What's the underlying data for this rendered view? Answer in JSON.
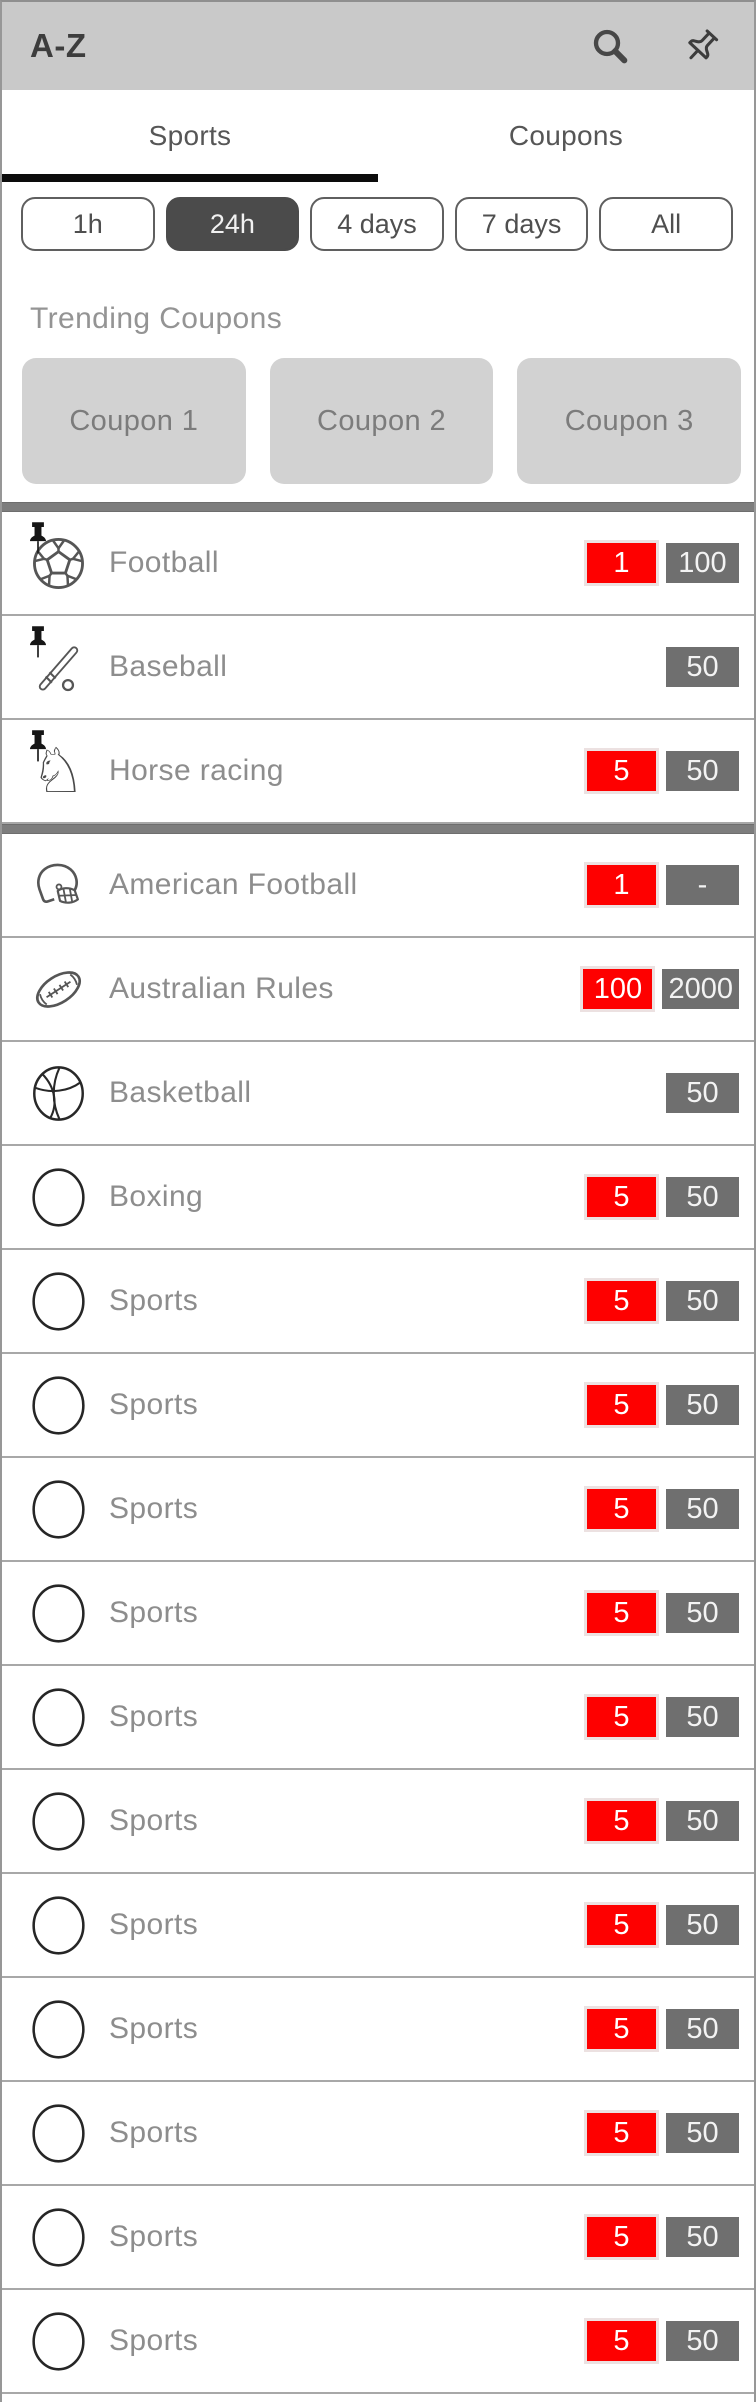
{
  "header": {
    "title": "A-Z",
    "search_icon": "search-icon",
    "pin_icon": "pushpin-icon"
  },
  "tabs": [
    {
      "label": "Sports",
      "active": true
    },
    {
      "label": "Coupons",
      "active": false
    }
  ],
  "filters": [
    {
      "label": "1h"
    },
    {
      "label": "24h",
      "selected": true
    },
    {
      "label": "4 days"
    },
    {
      "label": "7 days"
    },
    {
      "label": "All"
    }
  ],
  "trending": {
    "title": "Trending Coupons",
    "coupons": [
      {
        "label": "Coupon 1"
      },
      {
        "label": "Coupon 2"
      },
      {
        "label": "Coupon 3"
      }
    ]
  },
  "pinned_sports": [
    {
      "name": "Football",
      "icon": "soccer-ball-icon",
      "pinned": true,
      "live": "1",
      "total": "100"
    },
    {
      "name": "Baseball",
      "icon": "baseball-icon",
      "pinned": true,
      "total": "50"
    },
    {
      "name": "Horse racing",
      "icon": "horse-icon",
      "pinned": true,
      "live": "5",
      "total": "50"
    }
  ],
  "sports": [
    {
      "name": "American Football",
      "icon": "football-helmet-icon",
      "live": "1",
      "total": "-"
    },
    {
      "name": "Australian Rules",
      "icon": "rugby-ball-icon",
      "live": "100",
      "total": "2000"
    },
    {
      "name": "Basketball",
      "icon": "basketball-icon",
      "total": "50"
    },
    {
      "name": "Boxing",
      "icon": "circle-icon",
      "live": "5",
      "total": "50"
    },
    {
      "name": "Sports",
      "icon": "circle-icon",
      "live": "5",
      "total": "50"
    },
    {
      "name": "Sports",
      "icon": "circle-icon",
      "live": "5",
      "total": "50"
    },
    {
      "name": "Sports",
      "icon": "circle-icon",
      "live": "5",
      "total": "50"
    },
    {
      "name": "Sports",
      "icon": "circle-icon",
      "live": "5",
      "total": "50"
    },
    {
      "name": "Sports",
      "icon": "circle-icon",
      "live": "5",
      "total": "50"
    },
    {
      "name": "Sports",
      "icon": "circle-icon",
      "live": "5",
      "total": "50"
    },
    {
      "name": "Sports",
      "icon": "circle-icon",
      "live": "5",
      "total": "50"
    },
    {
      "name": "Sports",
      "icon": "circle-icon",
      "live": "5",
      "total": "50"
    },
    {
      "name": "Sports",
      "icon": "circle-icon",
      "live": "5",
      "total": "50"
    },
    {
      "name": "Sports",
      "icon": "circle-icon",
      "live": "5",
      "total": "50"
    },
    {
      "name": "Sports",
      "icon": "circle-icon",
      "live": "5",
      "total": "50"
    }
  ],
  "colors": {
    "header_bg": "#c9c9c9",
    "live_badge_red": "#fe0000",
    "count_badge_gray": "#6f6f6f",
    "separator_gray": "#7d7d7d",
    "selected_filter_bg": "#4b4b4b",
    "active_tab_underline": "#0c0c0c"
  }
}
